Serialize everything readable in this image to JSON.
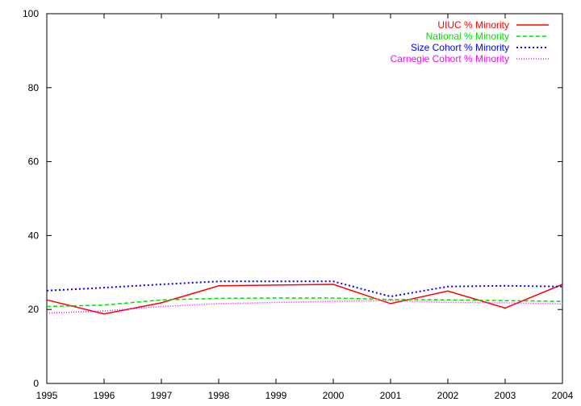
{
  "colors": {
    "uiuc": "#ff0000",
    "national": "#00dd00",
    "size_cohort": "#0000ff",
    "carnegie": "#ff00ff",
    "axis": "#000000"
  },
  "chart_data": {
    "type": "line",
    "title": "",
    "xlabel": "",
    "ylabel": "",
    "xlim": [
      1995,
      2004
    ],
    "ylim": [
      0,
      100
    ],
    "grid": false,
    "legend_position": "top-right",
    "x_ticks": [
      "1995",
      "1996",
      "1997",
      "1998",
      "1999",
      "2000",
      "2001",
      "2002",
      "2003",
      "2004"
    ],
    "y_ticks": [
      "0",
      "20",
      "40",
      "60",
      "80",
      "100"
    ],
    "x": [
      1995,
      1996,
      1997,
      1998,
      1999,
      2000,
      2001,
      2002,
      2003,
      2004
    ],
    "series": [
      {
        "name": "UIUC % Minority",
        "color_key": "uiuc",
        "dash": "solid",
        "values": [
          22.6,
          18.8,
          21.8,
          26.4,
          26.6,
          26.8,
          21.6,
          25.0,
          20.4,
          26.8
        ]
      },
      {
        "name": "National % Minority",
        "color_key": "national",
        "dash": "dashed",
        "values": [
          20.8,
          21.2,
          22.6,
          23.0,
          23.1,
          23.1,
          22.7,
          22.6,
          22.4,
          22.2
        ]
      },
      {
        "name": "Size Cohort % Minority",
        "color_key": "size_cohort",
        "dash": "dotted",
        "values": [
          25.1,
          25.9,
          26.8,
          27.6,
          27.6,
          27.6,
          23.5,
          26.2,
          26.4,
          26.2
        ]
      },
      {
        "name": "Carnegie Cohort % Minority",
        "color_key": "carnegie",
        "dash": "finedotted",
        "values": [
          19.0,
          19.6,
          20.8,
          21.6,
          21.9,
          22.2,
          22.4,
          21.9,
          21.8,
          21.5
        ]
      }
    ]
  }
}
